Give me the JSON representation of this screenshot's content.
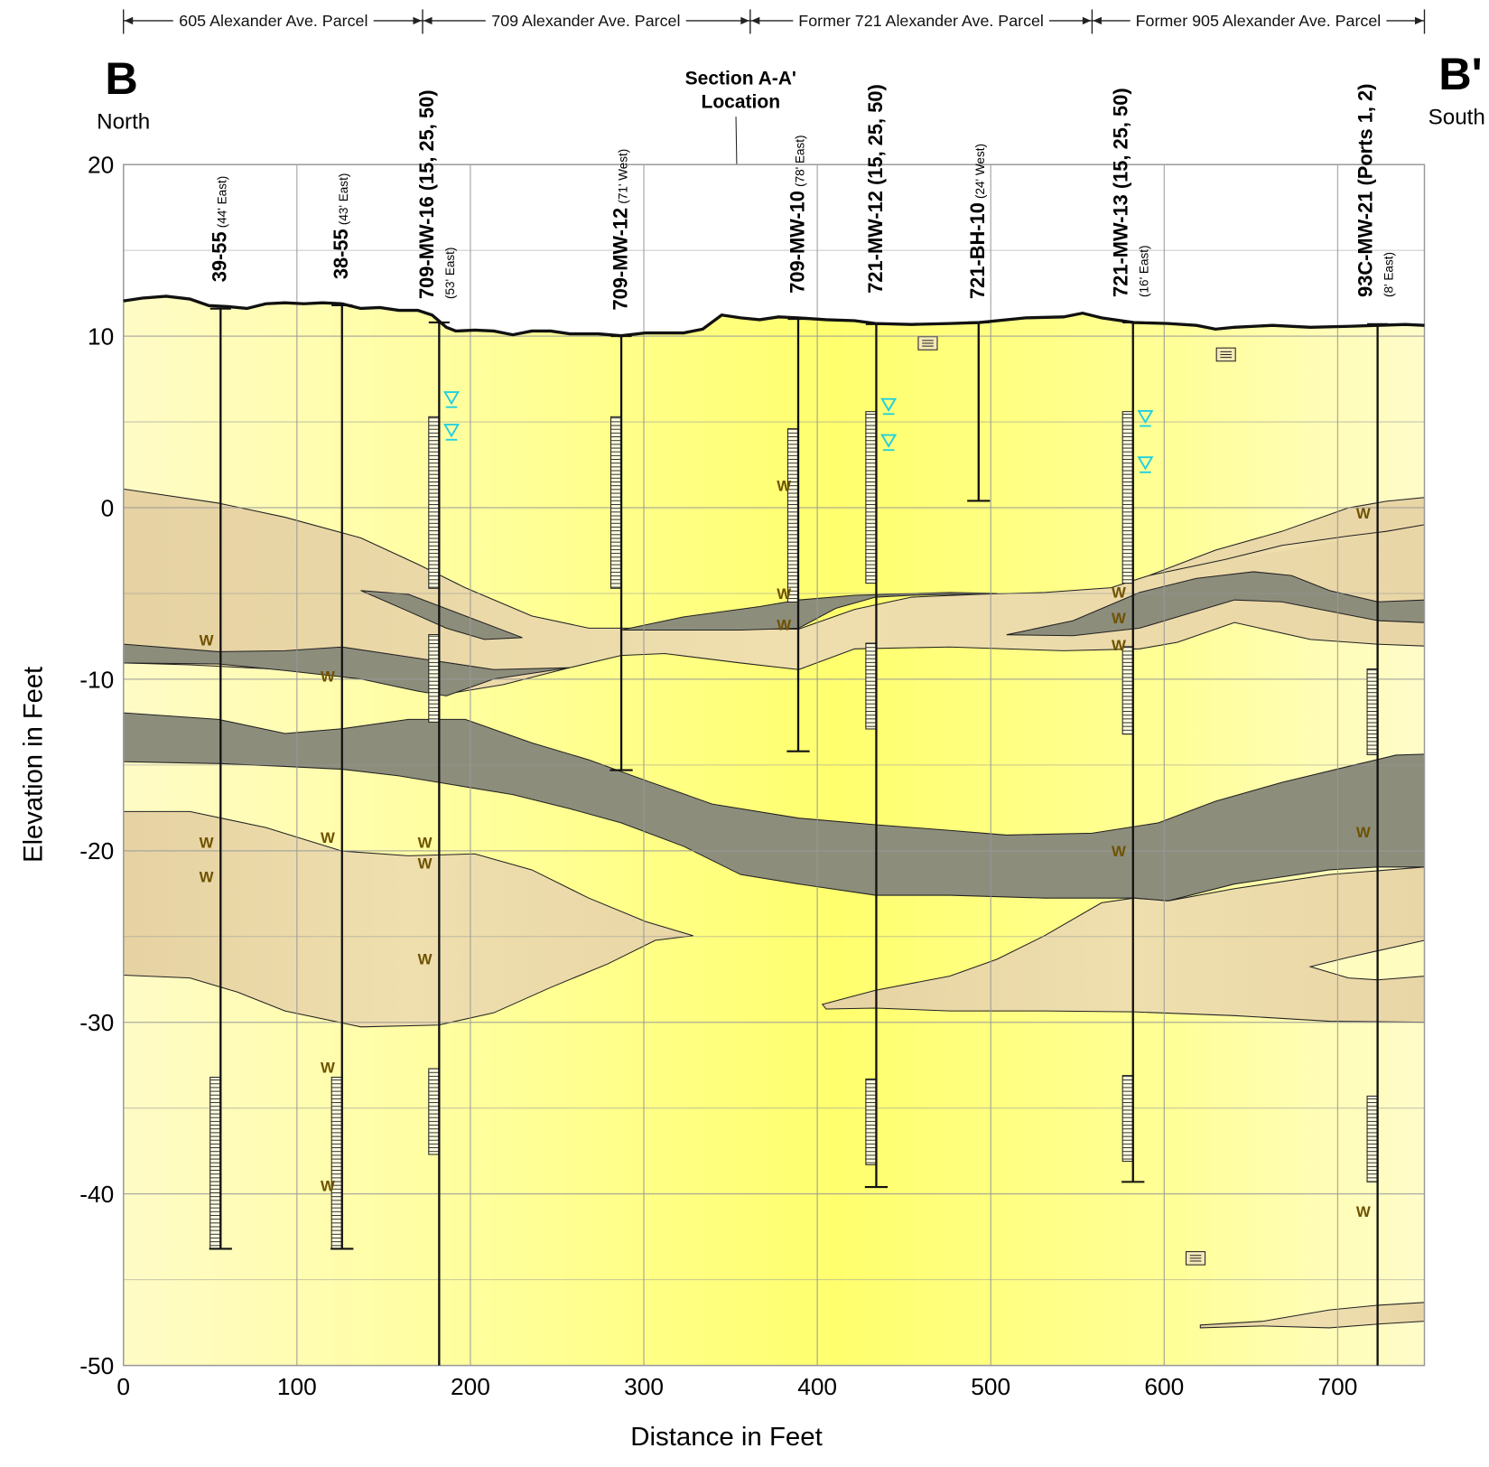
{
  "chart_data": {
    "type": "cross-section",
    "parcels": [
      "605 Alexander Ave. Parcel",
      "709 Alexander Ave. Parcel",
      "Former 721 Alexander Ave. Parcel",
      "Former 905 Alexander Ave. Parcel"
    ],
    "section_start": {
      "label": "B",
      "direction": "North"
    },
    "section_end": {
      "label": "B'",
      "direction": "South"
    },
    "annotation": [
      "Section A-A'",
      "Location"
    ],
    "xlabel": "Distance in Feet",
    "ylabel": "Elevation in Feet",
    "xlim": [
      0,
      750
    ],
    "ylim": [
      -50,
      20
    ],
    "xticks": [
      0,
      100,
      200,
      300,
      400,
      500,
      600,
      700
    ],
    "yticks": [
      -50,
      -40,
      -30,
      -20,
      -10,
      0,
      10,
      20
    ],
    "minor_yticks": [
      -45,
      -35,
      -25,
      -15,
      -5,
      5,
      15
    ],
    "sample_marker_label": "W",
    "wells": [
      {
        "name": "39-55",
        "offset": "(44' East)",
        "x": 56,
        "top": 11.6,
        "bottom": -43.2,
        "screens": [
          [
            -33.2,
            -43.2
          ]
        ],
        "water_levels": [],
        "samples": [
          -7.7,
          -19.5,
          -21.5
        ]
      },
      {
        "name": "38-55",
        "offset": "(43' East)",
        "x": 126,
        "top": 11.8,
        "bottom": -43.2,
        "screens": [
          [
            -33.2,
            -43.2
          ]
        ],
        "water_levels": [],
        "samples": [
          -9.8,
          -19.2,
          -32.6,
          -39.5
        ]
      },
      {
        "name": "709-MW-16 (15, 25, 50)",
        "offset": "(53' East)",
        "x": 182,
        "top": 10.8,
        "bottom": -50,
        "screens": [
          [
            5.3,
            -4.7
          ],
          [
            -7.4,
            -12.5
          ],
          [
            -32.7,
            -37.7
          ]
        ],
        "water_levels": [
          6.3,
          4.4
        ],
        "samples": [
          -19.5,
          -20.7,
          -26.3
        ]
      },
      {
        "name": "709-MW-12",
        "offset": "(71' West)",
        "x": 287,
        "top": 10,
        "bottom": -15.3,
        "screens": [
          [
            5.3,
            -4.7
          ]
        ],
        "water_levels": [],
        "samples": []
      },
      {
        "name": "709-MW-10",
        "offset": "(78' East)",
        "x": 389,
        "top": 11,
        "bottom": -14.2,
        "screens": [
          [
            4.6,
            -5.5
          ]
        ],
        "water_levels": [],
        "samples": [
          1.3,
          -5.0,
          -6.8
        ]
      },
      {
        "name": "721-MW-12 (15, 25, 50)",
        "x": 434,
        "top": 10.7,
        "bottom": -39.6,
        "screens": [
          [
            5.6,
            -4.4
          ],
          [
            -7.9,
            -12.9
          ],
          [
            -33.3,
            -38.3
          ]
        ],
        "water_levels": [
          5.9,
          3.8
        ],
        "samples": []
      },
      {
        "name": "721-BH-10",
        "offset": "(24' West)",
        "x": 493,
        "top": 10.8,
        "bottom": 0.4,
        "screens": [],
        "water_levels": [],
        "samples": []
      },
      {
        "name": "721-MW-13 (15, 25, 50)",
        "offset": "(16' East)",
        "x": 582,
        "top": 10.8,
        "bottom": -39.3,
        "screens": [
          [
            5.6,
            -4.4
          ],
          [
            -8.1,
            -13.2
          ],
          [
            -33.1,
            -38.1
          ]
        ],
        "water_levels": [
          5.2,
          2.5
        ],
        "samples": [
          -4.9,
          -6.4,
          -8.0,
          -20.0
        ]
      },
      {
        "name": "93C-MW-21 (Ports 1, 2)",
        "offset": "(8' East)",
        "x": 723,
        "top": 10.7,
        "bottom": -50,
        "screens": [
          [
            -9.4,
            -14.4
          ],
          [
            -34.3,
            -39.3
          ]
        ],
        "water_levels": [],
        "samples": [
          -0.3,
          -18.9,
          -41.0
        ]
      }
    ]
  }
}
